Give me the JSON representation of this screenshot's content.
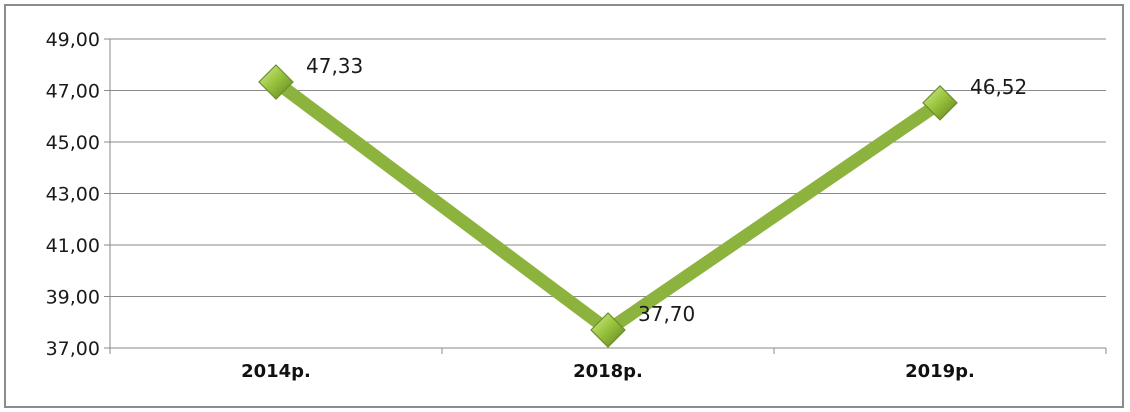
{
  "chart_data": {
    "type": "line",
    "categories": [
      "2014р.",
      "2018р.",
      "2019р."
    ],
    "series": [
      {
        "values": [
          47.33,
          37.7,
          46.52
        ],
        "data_labels": [
          "47,33",
          "37,70",
          "46,52"
        ],
        "color": "#8db33f",
        "marker": "diamond",
        "marker_color": "#9bc63e"
      }
    ],
    "title": "",
    "xlabel": "",
    "ylabel": "",
    "ylim": [
      37,
      49
    ],
    "yticks": [
      37,
      39,
      41,
      43,
      45,
      47,
      49
    ],
    "ytick_labels": [
      "37,00",
      "39,00",
      "41,00",
      "43,00",
      "45,00",
      "47,00",
      "49,00"
    ],
    "grid": true,
    "legend": "none"
  }
}
